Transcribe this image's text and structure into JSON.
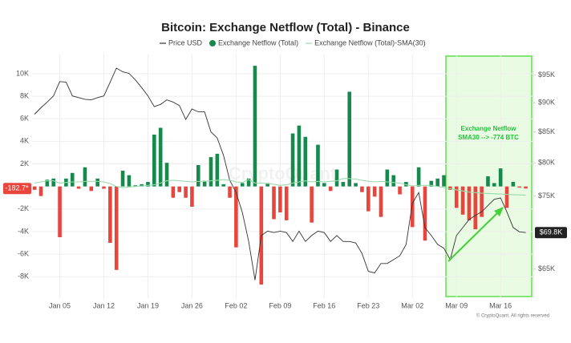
{
  "chart_data": {
    "type": "bar",
    "title": "Bitcoin: Exchange Netflow (Total) - Binance",
    "watermark": "CryptoQuant",
    "footer": "© CryptoQuant. All rights reserved",
    "annotation": [
      "Exchange Netflow",
      "SMA30 --> -774 BTC"
    ],
    "x": [
      "Jan 01",
      "Jan 02",
      "Jan 03",
      "Jan 04",
      "Jan 05",
      "Jan 06",
      "Jan 07",
      "Jan 08",
      "Jan 09",
      "Jan 10",
      "Jan 11",
      "Jan 12",
      "Jan 13",
      "Jan 14",
      "Jan 15",
      "Jan 16",
      "Jan 17",
      "Jan 18",
      "Jan 19",
      "Jan 20",
      "Jan 21",
      "Jan 22",
      "Jan 23",
      "Jan 24",
      "Jan 25",
      "Jan 26",
      "Jan 27",
      "Jan 28",
      "Jan 29",
      "Jan 30",
      "Jan 31",
      "Feb 01",
      "Feb 02",
      "Feb 03",
      "Feb 04",
      "Feb 05",
      "Feb 06",
      "Feb 07",
      "Feb 08",
      "Feb 09",
      "Feb 10",
      "Feb 11",
      "Feb 12",
      "Feb 13",
      "Feb 14",
      "Feb 15",
      "Feb 16",
      "Feb 17",
      "Feb 18",
      "Feb 19",
      "Feb 20",
      "Feb 21",
      "Feb 22",
      "Feb 23",
      "Feb 24",
      "Feb 25",
      "Feb 26",
      "Feb 27",
      "Feb 28",
      "Mar 01",
      "Mar 02",
      "Mar 03",
      "Mar 04",
      "Mar 05",
      "Mar 06",
      "Mar 07",
      "Mar 08",
      "Mar 09",
      "Mar 10",
      "Mar 11",
      "Mar 12",
      "Mar 13",
      "Mar 14",
      "Mar 15",
      "Mar 16",
      "Mar 17",
      "Mar 18",
      "Mar 19",
      "Mar 20"
    ],
    "xticks": [
      "Jan 05",
      "Jan 12",
      "Jan 19",
      "Jan 26",
      "Feb 02",
      "Feb 09",
      "Feb 16",
      "Feb 23",
      "Mar 02",
      "Mar 09",
      "Mar 16"
    ],
    "series": [
      {
        "name": "Price USD",
        "type": "line",
        "axis": "y2",
        "color": "#333333",
        "values": [
          88000,
          89100,
          90100,
          91200,
          93800,
          93700,
          91200,
          90900,
          90600,
          90500,
          90900,
          91200,
          93700,
          96300,
          95600,
          95300,
          94100,
          92700,
          91200,
          89300,
          89700,
          90500,
          90100,
          89500,
          87100,
          88900,
          88400,
          88400,
          85000,
          84000,
          81200,
          77300,
          75500,
          72600,
          68600,
          63600,
          69400,
          70000,
          69800,
          70000,
          69800,
          68600,
          70000,
          68600,
          69400,
          70000,
          69800,
          68600,
          69400,
          68600,
          68600,
          68400,
          67000,
          64700,
          64500,
          65700,
          65700,
          66200,
          66700,
          68200,
          73900,
          75500,
          70500,
          69400,
          68200,
          67700,
          66200,
          69400,
          70500,
          71600,
          72200,
          72700,
          73600,
          74500,
          74700,
          72700,
          70500,
          69900,
          69800
        ],
        "value_labels": [
          null,
          null,
          null,
          null,
          null,
          null,
          null,
          null,
          null,
          null,
          null,
          null,
          null,
          null,
          null,
          null,
          null,
          null,
          null,
          null,
          null,
          null,
          null,
          null,
          null,
          null,
          null,
          null,
          null,
          null,
          null,
          null,
          null,
          null,
          null,
          null,
          null,
          null,
          null,
          null,
          null,
          null,
          null,
          null,
          null,
          null,
          null,
          null,
          null,
          null,
          null,
          null,
          null,
          null,
          null,
          null,
          null,
          null,
          null,
          null,
          null,
          null,
          null,
          null,
          null,
          null,
          null,
          null,
          null,
          null,
          null,
          null,
          null,
          null,
          null,
          null,
          null,
          null,
          "$69.8K"
        ]
      },
      {
        "name": "Exchange Netflow (Total)",
        "type": "bar",
        "color": "#16894c",
        "negative_color": "#e8453c",
        "values": [
          -300,
          -850,
          600,
          700,
          -4500,
          700,
          1200,
          -200,
          1700,
          -400,
          700,
          -200,
          -5000,
          -7400,
          1400,
          1000,
          100,
          200,
          400,
          4600,
          5200,
          2100,
          -1000,
          -500,
          -1000,
          -1800,
          1900,
          500,
          2600,
          2900,
          200,
          -1000,
          -5400,
          300,
          700,
          10700,
          -8700,
          300,
          -2900,
          -2300,
          -3000,
          4700,
          5400,
          4400,
          -3200,
          3700,
          300,
          -400,
          1500,
          400,
          8400,
          300,
          -500,
          -2200,
          -900,
          -2700,
          1500,
          1000,
          -700,
          400,
          -3600,
          1700,
          -4800,
          500,
          700,
          1000,
          -300,
          -1900,
          -2500,
          -3000,
          -3800,
          -2700,
          900,
          300,
          1600,
          -1900,
          400,
          -100,
          -182.7
        ],
        "value_labels": [
          null,
          null,
          null,
          null,
          null,
          null,
          null,
          null,
          null,
          null,
          null,
          null,
          null,
          null,
          null,
          null,
          null,
          null,
          null,
          null,
          null,
          null,
          null,
          null,
          null,
          null,
          null,
          null,
          null,
          null,
          null,
          null,
          null,
          null,
          null,
          null,
          null,
          null,
          null,
          null,
          null,
          null,
          null,
          null,
          null,
          null,
          null,
          null,
          null,
          null,
          null,
          null,
          null,
          null,
          null,
          null,
          null,
          null,
          null,
          null,
          null,
          null,
          null,
          null,
          null,
          null,
          null,
          null,
          null,
          null,
          null,
          null,
          null,
          null,
          null,
          null,
          null,
          null,
          "-182.7*"
        ]
      },
      {
        "name": "Exchange Netflow (Total)-SMA(30)",
        "type": "line",
        "color": "#9ad9ab",
        "values": [
          300,
          400,
          500,
          500,
          300,
          350,
          400,
          400,
          450,
          450,
          450,
          400,
          250,
          0,
          -100,
          -50,
          0,
          50,
          100,
          150,
          300,
          500,
          550,
          500,
          450,
          400,
          450,
          450,
          500,
          550,
          600,
          550,
          400,
          350,
          600,
          300,
          300,
          250,
          200,
          100,
          150,
          300,
          400,
          500,
          400,
          450,
          400,
          450,
          500,
          700,
          700,
          650,
          550,
          450,
          400,
          450,
          400,
          350,
          300,
          150,
          50,
          100,
          100,
          100,
          0,
          -100,
          -200,
          -300,
          -400,
          -500,
          -550,
          -600,
          -620,
          -650,
          -680,
          -700,
          -730,
          -750,
          -774
        ]
      }
    ],
    "ylim": [
      -9900,
      11700
    ],
    "yticks": [
      {
        "value": -8000,
        "label": "-8K"
      },
      {
        "value": -6000,
        "label": "-6K"
      },
      {
        "value": -4000,
        "label": "-4K"
      },
      {
        "value": -2000,
        "label": "-2K"
      },
      {
        "value": 2000,
        "label": "2K"
      },
      {
        "value": 4000,
        "label": "4K"
      },
      {
        "value": 6000,
        "label": "6K"
      },
      {
        "value": 8000,
        "label": "8K"
      },
      {
        "value": 10000,
        "label": "10K"
      }
    ],
    "y2lim": [
      61400,
      98900
    ],
    "y2scale": "log",
    "y2ticks": [
      {
        "value": 65000,
        "label": "$65K"
      },
      {
        "value": 75000,
        "label": "$75K"
      },
      {
        "value": 80000,
        "label": "$80K"
      },
      {
        "value": 85000,
        "label": "$85K"
      },
      {
        "value": 90000,
        "label": "$90K"
      },
      {
        "value": 95000,
        "label": "$95K"
      }
    ],
    "grid": true
  }
}
